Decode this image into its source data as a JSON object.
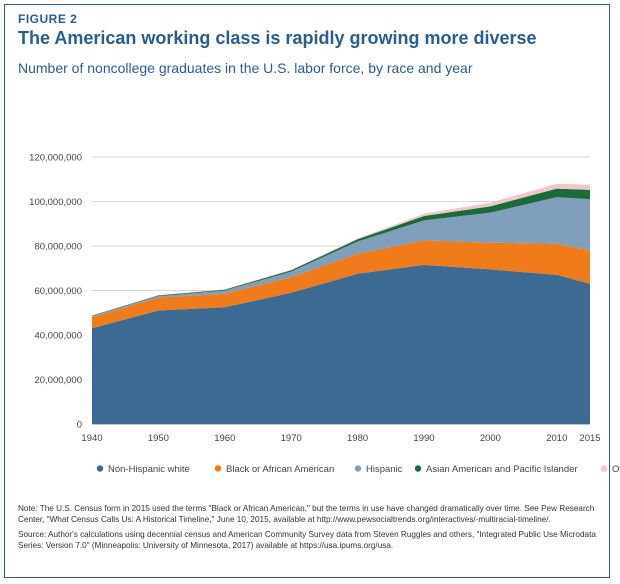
{
  "figure_label": "FIGURE 2",
  "title": "The American working class is rapidly growing more diverse",
  "subtitle": "Number of noncollege graduates in the U.S. labor force, by race and year",
  "notes": {
    "note": "Note: The U.S. Census form in 2015 used the terms \"Black or African American,\" but the terms in use have changed dramatically over time. See Pew Research Center, \"What Census Calls Us: A Historical Timeline,\" June 10, 2015, available at http://www.pewsocialtrends.org/interactives/-multiracial-timeline/.",
    "source": "Source: Author's calculations using decennial census and American Community Survey data from Steven Ruggles and others, \"Integrated Public Use Microdata Series: Version 7.0\" (Minneapolis: University of Minnesota, 2017) available at https://usa.ipums.org/usa."
  },
  "chart_data": {
    "type": "area",
    "stacked": true,
    "x": [
      1940,
      1950,
      1960,
      1970,
      1980,
      1990,
      2000,
      2010,
      2015
    ],
    "xtick_labels": [
      "1940",
      "1950",
      "1960",
      "1970",
      "1980",
      "1990",
      "2000",
      "2010",
      "2015"
    ],
    "ylim": [
      0,
      120000000
    ],
    "ytick_values": [
      0,
      20000000,
      40000000,
      60000000,
      80000000,
      100000000,
      120000000
    ],
    "ytick_labels": [
      "0",
      "20,000,000",
      "40,000,000",
      "60,000,000",
      "80,000,000",
      "100,000,000",
      "120,000,000"
    ],
    "grid": true,
    "legend_position": "bottom",
    "series": [
      {
        "name": "Non-Hispanic white",
        "color": "#3d6a93",
        "values": [
          43000000,
          51000000,
          52500000,
          59000000,
          67500000,
          71500000,
          69500000,
          67000000,
          63000000
        ]
      },
      {
        "name": "Black or African American",
        "color": "#ef7b1a",
        "values": [
          5000000,
          5800000,
          6000000,
          7000000,
          9000000,
          11000000,
          12000000,
          14000000,
          15000000
        ]
      },
      {
        "name": "Hispanic",
        "color": "#7f9fbd",
        "values": [
          500000,
          700000,
          1500000,
          2500000,
          5500000,
          9000000,
          13500000,
          21000000,
          23000000
        ]
      },
      {
        "name": "Asian American and Pacific Islander",
        "color": "#1b6b3a",
        "values": [
          200000,
          300000,
          400000,
          600000,
          1000000,
          2000000,
          2800000,
          3800000,
          4200000
        ]
      },
      {
        "name": "Other",
        "color": "#f2c6c6",
        "values": [
          100000,
          150000,
          200000,
          300000,
          400000,
          1000000,
          1700000,
          2200000,
          2300000
        ]
      }
    ]
  }
}
